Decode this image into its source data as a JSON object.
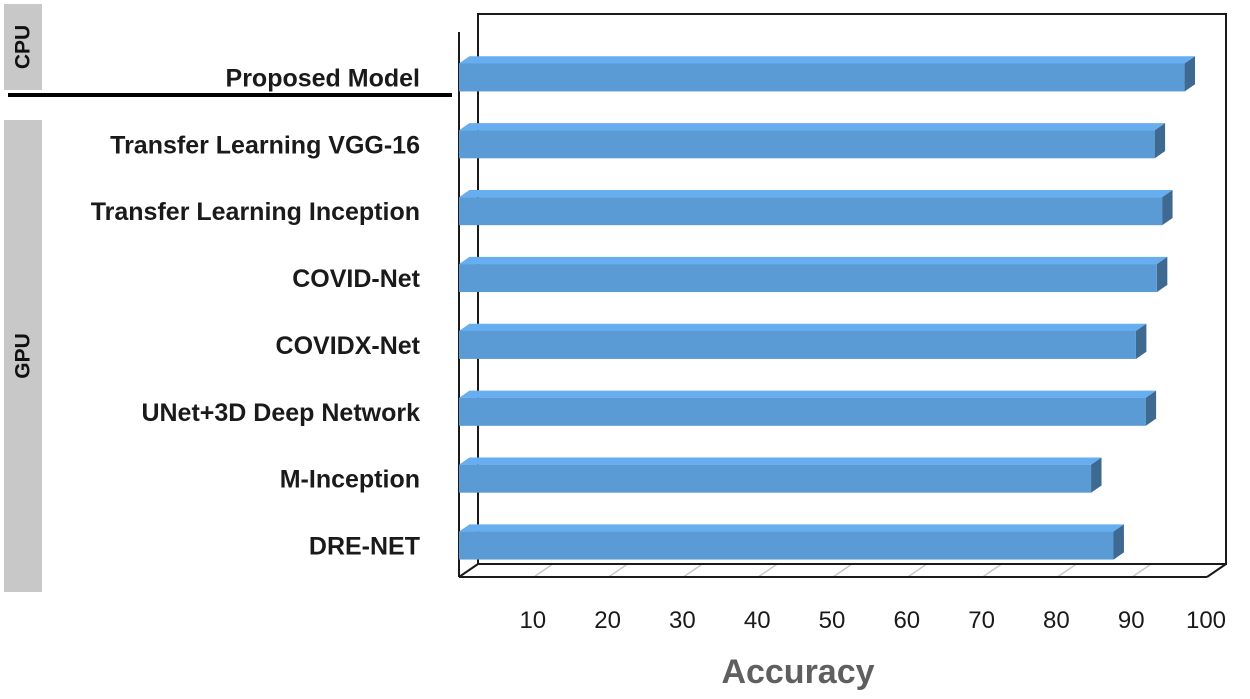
{
  "chart_data": {
    "type": "bar",
    "orientation": "horizontal",
    "categories": [
      "Proposed Model",
      "Transfer Learning VGG-16",
      "Transfer Learning Inception",
      "COVID-Net",
      "COVIDX-Net",
      "UNet+3D Deep Network",
      "M-Inception",
      "DRE-NET"
    ],
    "values": [
      97,
      93,
      94,
      93.3,
      90.5,
      91.8,
      84.5,
      87.5
    ],
    "xlabel": "Accuracy",
    "ylabel": "",
    "xlim": [
      0,
      100
    ],
    "xticks": [
      "10",
      "20",
      "30",
      "40",
      "50",
      "60",
      "70",
      "80",
      "90",
      "100"
    ],
    "grid": true,
    "bar_color": "#5B9BD5",
    "groups": [
      {
        "label": "CPU",
        "categories": [
          "Proposed Model"
        ]
      },
      {
        "label": "GPU",
        "categories": [
          "Transfer Learning VGG-16",
          "Transfer Learning Inception",
          "COVID-Net",
          "COVIDX-Net",
          "UNet+3D Deep Network",
          "M-Inception",
          "DRE-NET"
        ]
      }
    ]
  }
}
